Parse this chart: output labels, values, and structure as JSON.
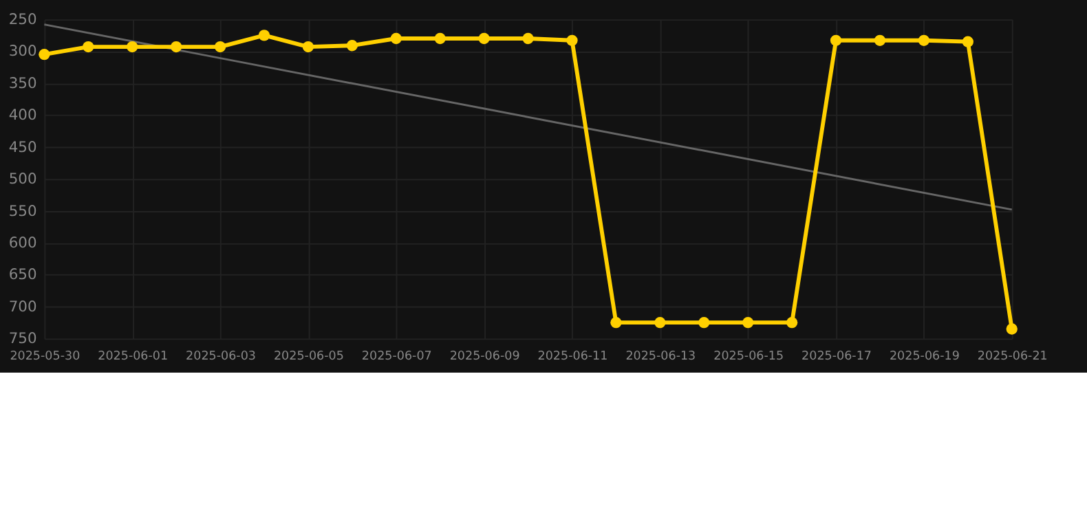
{
  "chart_data": {
    "type": "line",
    "x": [
      "2025-05-30",
      "2025-05-31",
      "2025-06-01",
      "2025-06-02",
      "2025-06-03",
      "2025-06-04",
      "2025-06-05",
      "2025-06-06",
      "2025-06-07",
      "2025-06-08",
      "2025-06-09",
      "2025-06-10",
      "2025-06-11",
      "2025-06-12",
      "2025-06-13",
      "2025-06-14",
      "2025-06-15",
      "2025-06-16",
      "2025-06-17",
      "2025-06-18",
      "2025-06-19",
      "2025-06-20",
      "2025-06-21"
    ],
    "series": [
      {
        "color": "#ffd000",
        "marker": "circle",
        "values": [
          305,
          293,
          293,
          293,
          293,
          275,
          293,
          291,
          280,
          280,
          280,
          280,
          283,
          725,
          725,
          725,
          725,
          725,
          283,
          283,
          283,
          285,
          735
        ]
      },
      {
        "type": "line",
        "color": "#666666",
        "marker": "none",
        "x": [
          "2025-05-30",
          "2025-06-21"
        ],
        "values": [
          258,
          548
        ]
      }
    ],
    "xlim": [
      "2025-05-30",
      "2025-06-21"
    ],
    "xticks": [
      {
        "value": "2025-05-30",
        "label": "2025-05-30"
      },
      {
        "value": "2025-06-01",
        "label": "2025-06-01"
      },
      {
        "value": "2025-06-03",
        "label": "2025-06-03"
      },
      {
        "value": "2025-06-05",
        "label": "2025-06-05"
      },
      {
        "value": "2025-06-07",
        "label": "2025-06-07"
      },
      {
        "value": "2025-06-09",
        "label": "2025-06-09"
      },
      {
        "value": "2025-06-11",
        "label": "2025-06-11"
      },
      {
        "value": "2025-06-13",
        "label": "2025-06-13"
      },
      {
        "value": "2025-06-15",
        "label": "2025-06-15"
      },
      {
        "value": "2025-06-17",
        "label": "2025-06-17"
      },
      {
        "value": "2025-06-19",
        "label": "2025-06-19"
      },
      {
        "value": "2025-06-21",
        "label": "2025-06-21"
      }
    ],
    "ylim": [
      750,
      250
    ],
    "yticks": [
      250,
      300,
      350,
      400,
      450,
      500,
      550,
      600,
      650,
      700,
      750
    ],
    "grid": true
  }
}
